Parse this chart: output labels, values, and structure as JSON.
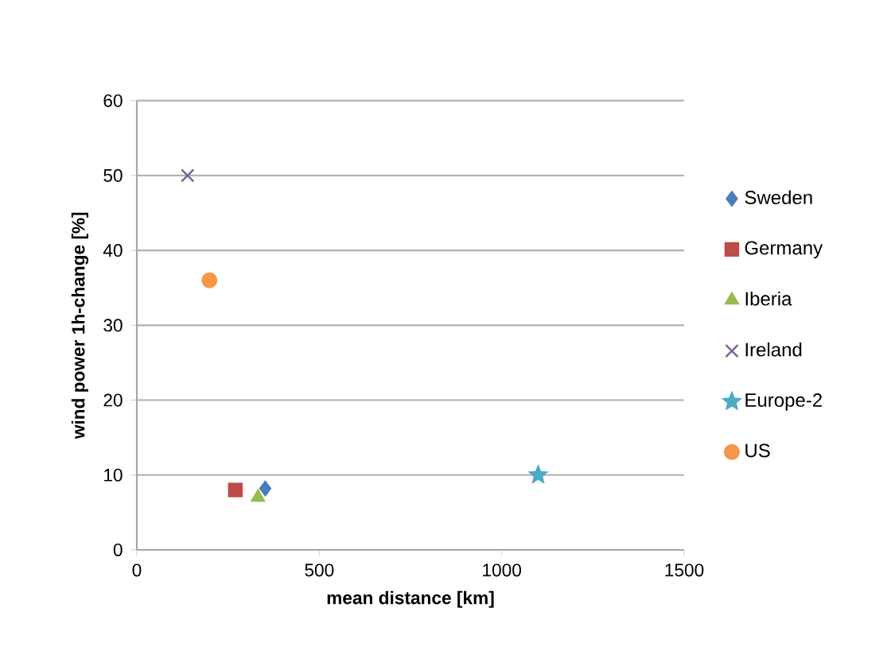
{
  "chart_data": {
    "type": "scatter",
    "xlabel": "mean distance [km]",
    "ylabel": "wind power  1h-change [%]",
    "xlim": [
      0,
      1500
    ],
    "xticks": [
      0,
      500,
      1000,
      1500
    ],
    "ylim": [
      0,
      60
    ],
    "yticks": [
      0,
      10,
      20,
      30,
      40,
      50,
      60
    ],
    "grid": "y",
    "legend": "right",
    "series": [
      {
        "name": "Sweden",
        "color": "#4a7ebb",
        "marker": "diamond",
        "x": [
          352
        ],
        "values": [
          8.2
        ]
      },
      {
        "name": "Germany",
        "color": "#be4b48",
        "marker": "square",
        "x": [
          270
        ],
        "values": [
          8
        ]
      },
      {
        "name": "Iberia",
        "color": "#98b954",
        "marker": "triangle",
        "x": [
          332
        ],
        "values": [
          7
        ]
      },
      {
        "name": "Ireland",
        "color": "#7d60a0",
        "marker": "cross",
        "x": [
          139
        ],
        "values": [
          50
        ]
      },
      {
        "name": "Europe-2",
        "color": "#4bacc6",
        "marker": "star",
        "x": [
          1100
        ],
        "values": [
          10
        ]
      },
      {
        "name": "US",
        "color": "#f79646",
        "marker": "circle",
        "x": [
          199
        ],
        "values": [
          36
        ]
      }
    ]
  }
}
